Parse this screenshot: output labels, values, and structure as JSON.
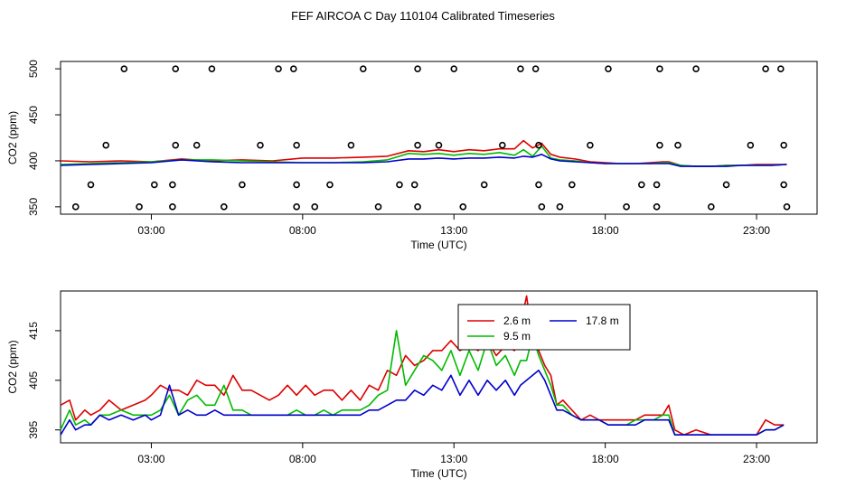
{
  "title": "FEF AIRCOA C  Day 110104  Calibrated Timeseries",
  "colors": {
    "s1": "#dd0000",
    "s2": "#00bb00",
    "s3": "#0000cc",
    "axis": "#000000"
  },
  "chart_data": [
    {
      "type": "line+scatter",
      "name": "top-panel",
      "xlabel": "Time (UTC)",
      "ylabel": "CO2 (ppm)",
      "xlim": [
        0.0,
        25.0
      ],
      "ylim": [
        342,
        508
      ],
      "xticks": [
        3,
        8,
        13,
        18,
        23
      ],
      "xtick_labels": [
        "03:00",
        "08:00",
        "13:00",
        "18:00",
        "23:00"
      ],
      "yticks": [
        350,
        400,
        450,
        500
      ],
      "ytick_labels": [
        "350",
        "400",
        "450",
        "500"
      ],
      "scatter_points": [
        [
          2.1,
          500
        ],
        [
          3.8,
          500
        ],
        [
          5.0,
          500
        ],
        [
          7.2,
          500
        ],
        [
          7.7,
          500
        ],
        [
          10.0,
          500
        ],
        [
          11.8,
          500
        ],
        [
          13.0,
          500
        ],
        [
          15.2,
          500
        ],
        [
          15.7,
          500
        ],
        [
          18.1,
          500
        ],
        [
          19.8,
          500
        ],
        [
          21.0,
          500
        ],
        [
          23.3,
          500
        ],
        [
          23.8,
          500
        ],
        [
          1.5,
          417
        ],
        [
          3.8,
          417
        ],
        [
          4.5,
          417
        ],
        [
          6.6,
          417
        ],
        [
          7.8,
          417
        ],
        [
          9.6,
          417
        ],
        [
          11.8,
          417
        ],
        [
          12.5,
          417
        ],
        [
          14.6,
          417
        ],
        [
          15.8,
          417
        ],
        [
          17.5,
          417
        ],
        [
          19.8,
          417
        ],
        [
          20.4,
          417
        ],
        [
          22.8,
          417
        ],
        [
          23.9,
          417
        ],
        [
          1.0,
          374
        ],
        [
          3.1,
          374
        ],
        [
          3.7,
          374
        ],
        [
          6.0,
          374
        ],
        [
          7.8,
          374
        ],
        [
          8.9,
          374
        ],
        [
          11.2,
          374
        ],
        [
          11.7,
          374
        ],
        [
          14.0,
          374
        ],
        [
          15.8,
          374
        ],
        [
          16.9,
          374
        ],
        [
          19.2,
          374
        ],
        [
          19.7,
          374
        ],
        [
          22.0,
          374
        ],
        [
          23.9,
          374
        ],
        [
          0.5,
          350
        ],
        [
          2.6,
          350
        ],
        [
          3.7,
          350
        ],
        [
          5.4,
          350
        ],
        [
          7.8,
          350
        ],
        [
          8.4,
          350
        ],
        [
          10.5,
          350
        ],
        [
          11.8,
          350
        ],
        [
          13.3,
          350
        ],
        [
          15.9,
          350
        ],
        [
          16.5,
          350
        ],
        [
          18.7,
          350
        ],
        [
          19.7,
          350
        ],
        [
          21.5,
          350
        ],
        [
          24.0,
          350
        ]
      ],
      "series": [
        {
          "name": "2.6 m",
          "x": [
            0.0,
            1.0,
            2.0,
            3.0,
            4.0,
            5.0,
            6.0,
            7.0,
            8.0,
            9.0,
            10.0,
            10.8,
            11.5,
            12.0,
            12.5,
            13.0,
            13.5,
            14.0,
            14.5,
            15.0,
            15.3,
            15.6,
            15.9,
            16.2,
            16.5,
            17.0,
            17.5,
            18.0,
            18.5,
            19.0,
            19.5,
            19.9,
            20.1,
            20.5,
            21.0,
            21.5,
            22.0,
            22.5,
            23.0,
            23.5,
            24.0
          ],
          "values": [
            400,
            399,
            400,
            399,
            402,
            400,
            401,
            400,
            403,
            403,
            404,
            405,
            411,
            410,
            412,
            410,
            412,
            411,
            413,
            413,
            422,
            414,
            419,
            407,
            404,
            402,
            399,
            398,
            397,
            397,
            398,
            399,
            399,
            395,
            394,
            394,
            395,
            395,
            396,
            396,
            396
          ]
        },
        {
          "name": "9.5 m",
          "x": [
            0.0,
            1.0,
            2.0,
            3.0,
            4.0,
            5.0,
            6.0,
            7.0,
            8.0,
            9.0,
            10.0,
            10.8,
            11.5,
            12.0,
            12.5,
            13.0,
            13.5,
            14.0,
            14.5,
            15.0,
            15.3,
            15.6,
            15.9,
            16.2,
            16.5,
            17.0,
            17.5,
            18.0,
            18.5,
            19.0,
            19.5,
            19.9,
            20.1,
            20.5,
            21.0,
            21.5,
            22.0,
            22.5,
            23.0,
            23.5,
            24.0
          ],
          "values": [
            396,
            397,
            398,
            399,
            401,
            401,
            400,
            399,
            398,
            398,
            399,
            401,
            408,
            407,
            408,
            406,
            408,
            407,
            409,
            406,
            412,
            405,
            416,
            403,
            401,
            400,
            398,
            397,
            397,
            397,
            397,
            398,
            398,
            395,
            394,
            394,
            395,
            395,
            395,
            395,
            396
          ]
        },
        {
          "name": "17.8 m",
          "x": [
            0.0,
            1.0,
            2.0,
            3.0,
            4.0,
            5.0,
            6.0,
            7.0,
            8.0,
            9.0,
            10.0,
            10.8,
            11.5,
            12.0,
            12.5,
            13.0,
            13.5,
            14.0,
            14.5,
            15.0,
            15.3,
            15.6,
            15.9,
            16.2,
            16.5,
            17.0,
            17.5,
            18.0,
            18.5,
            19.0,
            19.5,
            19.9,
            20.1,
            20.5,
            21.0,
            21.5,
            22.0,
            22.5,
            23.0,
            23.5,
            24.0
          ],
          "values": [
            395,
            396,
            397,
            398,
            401,
            399,
            398,
            398,
            398,
            398,
            398,
            399,
            402,
            402,
            403,
            402,
            403,
            403,
            404,
            403,
            405,
            404,
            407,
            402,
            400,
            399,
            398,
            397,
            397,
            397,
            397,
            397,
            397,
            394,
            394,
            394,
            394,
            395,
            395,
            395,
            396
          ]
        }
      ]
    },
    {
      "type": "line",
      "name": "bottom-panel",
      "xlabel": "Time (UTC)",
      "ylabel": "CO2 (ppm)",
      "xlim": [
        0.0,
        25.0
      ],
      "ylim": [
        392.4,
        423.0
      ],
      "xticks": [
        3,
        8,
        13,
        18,
        23
      ],
      "xtick_labels": [
        "03:00",
        "08:00",
        "13:00",
        "18:00",
        "23:00"
      ],
      "yticks": [
        395,
        405,
        415
      ],
      "ytick_labels": [
        "395",
        "405",
        "415"
      ],
      "legend": {
        "placement": "top-center",
        "entries": [
          "2.6 m",
          "9.5 m",
          "17.8 m"
        ]
      },
      "series": [
        {
          "name": "2.6 m",
          "x": [
            0.0,
            0.3,
            0.5,
            0.8,
            1.0,
            1.3,
            1.6,
            2.0,
            2.4,
            2.8,
            3.0,
            3.3,
            3.6,
            3.9,
            4.2,
            4.5,
            4.8,
            5.1,
            5.4,
            5.7,
            6.0,
            6.3,
            6.6,
            6.9,
            7.2,
            7.5,
            7.8,
            8.1,
            8.4,
            8.7,
            9.0,
            9.3,
            9.6,
            9.9,
            10.2,
            10.5,
            10.8,
            11.1,
            11.4,
            11.7,
            12.0,
            12.3,
            12.6,
            12.9,
            13.2,
            13.5,
            13.8,
            14.1,
            14.4,
            14.7,
            15.0,
            15.2,
            15.4,
            15.6,
            15.8,
            16.0,
            16.2,
            16.4,
            16.6,
            16.9,
            17.2,
            17.5,
            17.8,
            18.1,
            18.4,
            18.7,
            19.0,
            19.3,
            19.6,
            19.9,
            20.1,
            20.3,
            20.6,
            21.0,
            21.5,
            22.0,
            22.5,
            23.0,
            23.3,
            23.6,
            23.9
          ],
          "values": [
            400,
            401,
            397,
            399,
            398,
            399,
            401,
            399,
            400,
            401,
            402,
            404,
            403,
            403,
            402,
            405,
            404,
            404,
            402,
            406,
            403,
            403,
            402,
            401,
            402,
            404,
            402,
            404,
            402,
            403,
            403,
            401,
            403,
            401,
            404,
            403,
            407,
            406,
            410,
            408,
            409,
            411,
            411,
            413,
            411,
            412,
            411,
            413,
            410,
            412,
            411,
            416,
            422,
            413,
            411,
            408,
            406,
            400,
            401,
            399,
            397,
            398,
            397,
            397,
            397,
            397,
            397,
            398,
            398,
            398,
            400,
            395,
            394,
            395,
            394,
            394,
            394,
            394,
            397,
            396,
            396
          ]
        },
        {
          "name": "9.5 m",
          "x": [
            0.0,
            0.3,
            0.5,
            0.8,
            1.0,
            1.3,
            1.6,
            2.0,
            2.4,
            2.8,
            3.0,
            3.3,
            3.6,
            3.9,
            4.2,
            4.5,
            4.8,
            5.1,
            5.4,
            5.7,
            6.0,
            6.3,
            6.6,
            6.9,
            7.2,
            7.5,
            7.8,
            8.1,
            8.4,
            8.7,
            9.0,
            9.3,
            9.6,
            9.9,
            10.2,
            10.5,
            10.8,
            11.1,
            11.4,
            11.7,
            12.0,
            12.3,
            12.6,
            12.9,
            13.2,
            13.5,
            13.8,
            14.1,
            14.4,
            14.7,
            15.0,
            15.2,
            15.4,
            15.6,
            15.8,
            16.0,
            16.2,
            16.4,
            16.6,
            16.9,
            17.2,
            17.5,
            17.8,
            18.1,
            18.4,
            18.7,
            19.0,
            19.3,
            19.6,
            19.9,
            20.1,
            20.3,
            20.6,
            21.0,
            21.5,
            22.0,
            22.5,
            23.0,
            23.3,
            23.6,
            23.9
          ],
          "values": [
            395,
            399,
            396,
            397,
            396,
            398,
            398,
            399,
            398,
            398,
            398,
            399,
            402,
            398,
            401,
            402,
            400,
            400,
            404,
            399,
            399,
            398,
            398,
            398,
            398,
            398,
            399,
            398,
            398,
            399,
            398,
            399,
            399,
            399,
            400,
            402,
            403,
            415,
            404,
            407,
            410,
            409,
            407,
            411,
            406,
            411,
            407,
            413,
            408,
            410,
            406,
            409,
            409,
            414,
            410,
            407,
            404,
            400,
            400,
            398,
            397,
            397,
            397,
            396,
            396,
            396,
            397,
            397,
            397,
            398,
            398,
            394,
            394,
            394,
            394,
            394,
            394,
            394,
            395,
            395,
            396
          ]
        },
        {
          "name": "17.8 m",
          "x": [
            0.0,
            0.3,
            0.5,
            0.8,
            1.0,
            1.3,
            1.6,
            2.0,
            2.4,
            2.8,
            3.0,
            3.3,
            3.6,
            3.9,
            4.2,
            4.5,
            4.8,
            5.1,
            5.4,
            5.7,
            6.0,
            6.3,
            6.6,
            6.9,
            7.2,
            7.5,
            7.8,
            8.1,
            8.4,
            8.7,
            9.0,
            9.3,
            9.6,
            9.9,
            10.2,
            10.5,
            10.8,
            11.1,
            11.4,
            11.7,
            12.0,
            12.3,
            12.6,
            12.9,
            13.2,
            13.5,
            13.8,
            14.1,
            14.4,
            14.7,
            15.0,
            15.2,
            15.4,
            15.6,
            15.8,
            16.0,
            16.2,
            16.4,
            16.6,
            16.9,
            17.2,
            17.5,
            17.8,
            18.1,
            18.4,
            18.7,
            19.0,
            19.3,
            19.6,
            19.9,
            20.1,
            20.3,
            20.6,
            21.0,
            21.5,
            22.0,
            22.5,
            23.0,
            23.3,
            23.6,
            23.9
          ],
          "values": [
            394,
            397,
            395,
            396,
            396,
            398,
            397,
            398,
            397,
            398,
            397,
            398,
            404,
            398,
            399,
            398,
            398,
            399,
            398,
            398,
            398,
            398,
            398,
            398,
            398,
            398,
            398,
            398,
            398,
            398,
            398,
            398,
            398,
            398,
            399,
            399,
            400,
            401,
            401,
            403,
            402,
            404,
            403,
            406,
            402,
            405,
            402,
            405,
            403,
            405,
            402,
            404,
            405,
            406,
            407,
            405,
            402,
            399,
            399,
            398,
            397,
            397,
            397,
            396,
            396,
            396,
            396,
            397,
            397,
            397,
            397,
            394,
            394,
            394,
            394,
            394,
            394,
            394,
            395,
            395,
            396
          ]
        }
      ]
    }
  ]
}
